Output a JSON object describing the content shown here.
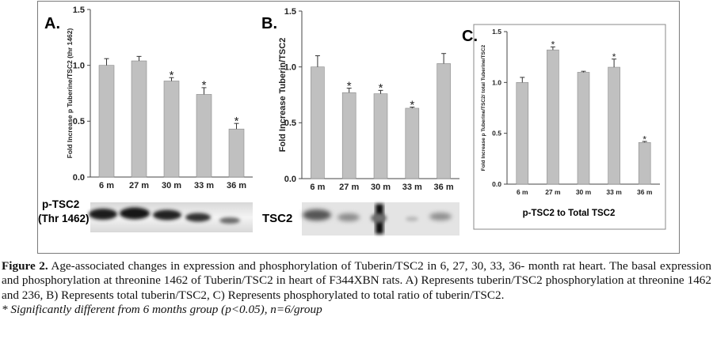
{
  "panels": {
    "A": {
      "letter": "A.",
      "blot_label_line1": "p-TSC2",
      "blot_label_line2": "(Thr 1462)"
    },
    "B": {
      "letter": "B.",
      "blot_label": "TSC2"
    },
    "C": {
      "letter": "C.",
      "bottom_title": "p-TSC2 to Total TSC2"
    }
  },
  "caption": {
    "figure_label": "Figure 2.",
    "text": " Age-associated changes in expression and phosphorylation of Tuberin/TSC2 in 6, 27, 30, 33, 36- month rat heart. The basal expression and phosphorylation at threonine 1462 of Tuberin/TSC2 in heart of F344XBN rats. A) Represents tuberin/TSC2 phosphorylation at threonine 1462 and 236, B) Represents total tuberin/TSC2, C) Represents phosphorylated to total ratio of tuberin/TSC2.",
    "note": "* Significantly different from 6 months group (p<0.05), n=6/group"
  },
  "chart_data": [
    {
      "type": "bar",
      "panel": "A",
      "categories": [
        "6 m",
        "27 m",
        "30 m",
        "33 m",
        "36 m"
      ],
      "values": [
        1.0,
        1.04,
        0.86,
        0.74,
        0.43
      ],
      "errors": [
        0.06,
        0.04,
        0.03,
        0.06,
        0.05
      ],
      "significant": [
        false,
        false,
        true,
        true,
        true
      ],
      "ylabel": "Fold Increase p Tuberine/TSC2 (thr 1462)",
      "xlabel": "",
      "ylim": [
        0,
        1.5
      ],
      "yticks": [
        "0.0",
        "0.5",
        "1.0",
        "1.5"
      ],
      "bar_color": "#c0c0c0"
    },
    {
      "type": "bar",
      "panel": "B",
      "categories": [
        "6 m",
        "27 m",
        "30 m",
        "33 m",
        "36 m"
      ],
      "values": [
        1.0,
        0.77,
        0.76,
        0.63,
        1.03
      ],
      "errors": [
        0.1,
        0.04,
        0.03,
        0.01,
        0.09
      ],
      "significant": [
        false,
        true,
        true,
        true,
        false
      ],
      "ylabel": "Fold Increase Tuberin/TSC2",
      "xlabel": "",
      "ylim": [
        0,
        1.5
      ],
      "yticks": [
        "0.0",
        "0.5",
        "1.0",
        "1.5"
      ],
      "bar_color": "#c0c0c0"
    },
    {
      "type": "bar",
      "panel": "C",
      "categories": [
        "6 m",
        "27 m",
        "30 m",
        "33 m",
        "36 m"
      ],
      "values": [
        1.0,
        1.32,
        1.1,
        1.15,
        0.41
      ],
      "errors": [
        0.05,
        0.03,
        0.01,
        0.08,
        0.01
      ],
      "significant": [
        false,
        true,
        false,
        true,
        true
      ],
      "ylabel": "Fold Increase p Tuberine/TSC2/ total Tuberine/TSC2",
      "xlabel": "p-TSC2 to Total TSC2",
      "ylim": [
        0,
        1.5
      ],
      "yticks": [
        "0.0",
        "0.5",
        "1.0",
        "1.5"
      ],
      "bar_color": "#c0c0c0"
    }
  ]
}
